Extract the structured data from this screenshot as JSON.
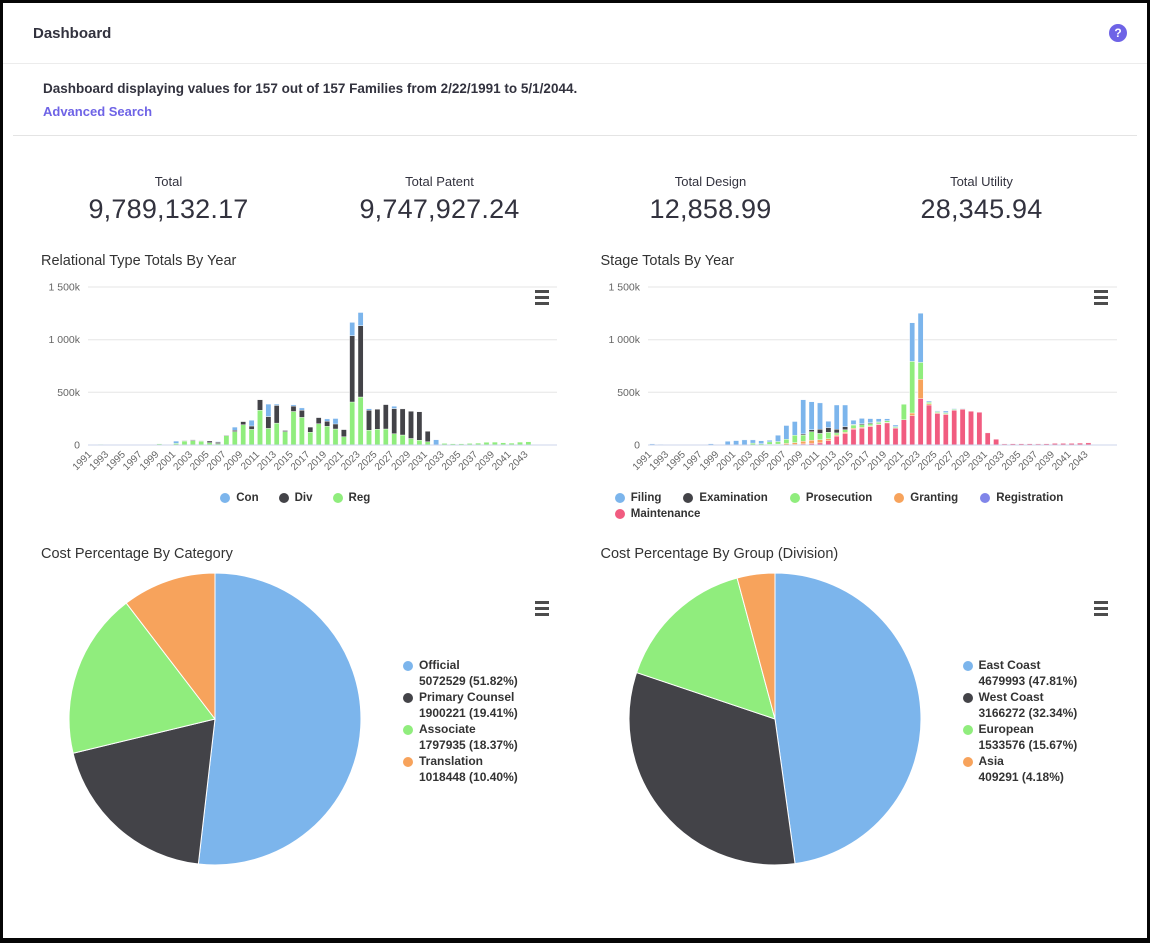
{
  "header": {
    "title": "Dashboard",
    "help_icon": "?"
  },
  "summary": {
    "text": "Dashboard displaying values for 157 out of 157 Families from 2/22/1991 to 5/1/2044.",
    "link_label": "Advanced Search"
  },
  "stats": [
    {
      "label": "Total",
      "value": "9,789,132.17"
    },
    {
      "label": "Total Patent",
      "value": "9,747,927.24"
    },
    {
      "label": "Total Design",
      "value": "12,858.99"
    },
    {
      "label": "Total Utility",
      "value": "28,345.94"
    }
  ],
  "colors": {
    "accent_purple": "#6e63e6",
    "series_blue": "#7cb5ec",
    "series_dark": "#434348",
    "series_green": "#90ed7d",
    "series_orange": "#f7a35c",
    "series_purple": "#8085e9",
    "series_pink": "#f15c80",
    "grid": "#e6e6e6",
    "axis_line": "#ccd6eb",
    "axis_text": "#666666"
  },
  "chart_data": [
    {
      "type": "bar",
      "title": "Relational Type Totals By Year",
      "stacked": true,
      "unit": "values in thousands (k)",
      "ylim_k": [
        0,
        1500
      ],
      "yticks": [
        {
          "label": "1 500k",
          "v": 1500
        },
        {
          "label": "1 000k",
          "v": 1000
        },
        {
          "label": "500k",
          "v": 500
        },
        {
          "label": "0",
          "v": 0
        }
      ],
      "x_tick_labels_every": 2,
      "legend_position": "bottom-center",
      "grid": true,
      "categories": [
        1991,
        1992,
        1993,
        1994,
        1995,
        1996,
        1997,
        1998,
        1999,
        2000,
        2001,
        2002,
        2003,
        2004,
        2005,
        2006,
        2007,
        2008,
        2009,
        2010,
        2011,
        2012,
        2013,
        2014,
        2015,
        2016,
        2017,
        2018,
        2019,
        2020,
        2021,
        2022,
        2023,
        2024,
        2025,
        2026,
        2027,
        2028,
        2029,
        2030,
        2031,
        2032,
        2033,
        2034,
        2035,
        2036,
        2037,
        2038,
        2039,
        2040,
        2041,
        2042,
        2043,
        2044
      ],
      "stack_bottom_to_top": [
        "Reg",
        "Div",
        "Con"
      ],
      "series": [
        {
          "name": "Con",
          "color": "#7cb5ec",
          "values_k": [
            0,
            0,
            0,
            0,
            0,
            0,
            0,
            0,
            0,
            0,
            22,
            0,
            0,
            0,
            0,
            6,
            0,
            30,
            0,
            55,
            0,
            118,
            12,
            0,
            12,
            22,
            0,
            0,
            22,
            52,
            0,
            126,
            126,
            15,
            0,
            0,
            22,
            0,
            0,
            0,
            0,
            50,
            0,
            0,
            0,
            0,
            0,
            0,
            0,
            0,
            0,
            0,
            0,
            0
          ]
        },
        {
          "name": "Div",
          "color": "#434348",
          "values_k": [
            0,
            0,
            0,
            0,
            0,
            0,
            0,
            0,
            0,
            0,
            0,
            5,
            8,
            5,
            16,
            12,
            6,
            12,
            30,
            32,
            100,
            112,
            168,
            10,
            52,
            68,
            48,
            58,
            48,
            48,
            68,
            629,
            676,
            190,
            190,
            232,
            238,
            248,
            258,
            270,
            100,
            0,
            0,
            0,
            0,
            0,
            0,
            0,
            0,
            0,
            0,
            0,
            0,
            0
          ]
        },
        {
          "name": "Reg",
          "color": "#90ed7d",
          "values_k": [
            5,
            8,
            4,
            2,
            2,
            1,
            1,
            2,
            10,
            3,
            15,
            38,
            42,
            36,
            22,
            14,
            88,
            128,
            192,
            148,
            330,
            158,
            208,
            128,
            318,
            262,
            122,
            202,
            178,
            152,
            78,
            409,
            456,
            140,
            150,
            152,
            108,
            95,
            62,
            45,
            30,
            0,
            15,
            12,
            12,
            15,
            18,
            26,
            28,
            22,
            18,
            28,
            30,
            4
          ]
        }
      ]
    },
    {
      "type": "bar",
      "title": "Stage Totals By Year",
      "stacked": true,
      "unit": "values in thousands (k)",
      "ylim_k": [
        0,
        1500
      ],
      "yticks": [
        {
          "label": "1 500k",
          "v": 1500
        },
        {
          "label": "1 000k",
          "v": 1000
        },
        {
          "label": "500k",
          "v": 500
        },
        {
          "label": "0",
          "v": 0
        }
      ],
      "x_tick_labels_every": 2,
      "legend_position": "bottom-left-wrap",
      "grid": true,
      "categories": [
        1991,
        1992,
        1993,
        1994,
        1995,
        1996,
        1997,
        1998,
        1999,
        2000,
        2001,
        2002,
        2003,
        2004,
        2005,
        2006,
        2007,
        2008,
        2009,
        2010,
        2011,
        2012,
        2013,
        2014,
        2015,
        2016,
        2017,
        2018,
        2019,
        2020,
        2021,
        2022,
        2023,
        2024,
        2025,
        2026,
        2027,
        2028,
        2029,
        2030,
        2031,
        2032,
        2033,
        2034,
        2035,
        2036,
        2037,
        2038,
        2039,
        2040,
        2041,
        2042,
        2043,
        2044
      ],
      "stack_bottom_to_top": [
        "Maintenance",
        "Granting",
        "Prosecution",
        "Examination",
        "Filing",
        "Registration"
      ],
      "series": [
        {
          "name": "Filing",
          "color": "#7cb5ec",
          "values_k": [
            10,
            8,
            3,
            2,
            2,
            1,
            1,
            12,
            3,
            35,
            42,
            48,
            30,
            28,
            15,
            60,
            130,
            130,
            325,
            265,
            250,
            60,
            230,
            205,
            40,
            50,
            40,
            30,
            20,
            15,
            0,
            366,
            467,
            10,
            8,
            15,
            8,
            5,
            0,
            0,
            0,
            0,
            0,
            0,
            0,
            0,
            0,
            0,
            0,
            0,
            0,
            0,
            0,
            0
          ]
        },
        {
          "name": "Examination",
          "color": "#434348",
          "values_k": [
            0,
            0,
            0,
            0,
            0,
            0,
            0,
            0,
            0,
            0,
            0,
            0,
            0,
            0,
            0,
            0,
            0,
            0,
            10,
            20,
            40,
            45,
            35,
            30,
            5,
            10,
            8,
            5,
            0,
            0,
            0,
            0,
            0,
            0,
            0,
            0,
            0,
            0,
            0,
            0,
            0,
            0,
            0,
            0,
            0,
            0,
            0,
            0,
            0,
            0,
            0,
            0,
            0,
            0
          ]
        },
        {
          "name": "Prosecution",
          "color": "#90ed7d",
          "values_k": [
            0,
            0,
            0,
            0,
            0,
            0,
            0,
            0,
            0,
            0,
            0,
            0,
            18,
            12,
            25,
            25,
            40,
            70,
            60,
            80,
            60,
            60,
            20,
            25,
            30,
            25,
            20,
            15,
            15,
            10,
            147,
            490,
            160,
            15,
            10,
            10,
            8,
            5,
            0,
            0,
            0,
            0,
            0,
            0,
            0,
            0,
            0,
            0,
            0,
            0,
            0,
            0,
            0,
            0
          ]
        },
        {
          "name": "Granting",
          "color": "#f7a35c",
          "values_k": [
            0,
            0,
            0,
            0,
            0,
            0,
            0,
            0,
            0,
            0,
            0,
            0,
            0,
            0,
            5,
            8,
            15,
            18,
            25,
            30,
            30,
            20,
            10,
            10,
            10,
            8,
            8,
            5,
            5,
            5,
            0,
            26,
            183,
            12,
            8,
            8,
            0,
            0,
            0,
            0,
            0,
            0,
            0,
            0,
            0,
            0,
            0,
            0,
            0,
            0,
            0,
            0,
            0,
            0
          ]
        },
        {
          "name": "Registration",
          "color": "#8085e9",
          "values_k": [
            0,
            0,
            0,
            0,
            0,
            0,
            0,
            0,
            0,
            0,
            0,
            0,
            0,
            0,
            0,
            0,
            0,
            0,
            0,
            0,
            0,
            0,
            0,
            0,
            0,
            0,
            0,
            0,
            0,
            0,
            0,
            0,
            0,
            0,
            0,
            0,
            0,
            0,
            0,
            0,
            0,
            0,
            0,
            0,
            0,
            0,
            0,
            0,
            0,
            0,
            0,
            0,
            0,
            0
          ]
        },
        {
          "name": "Maintenance",
          "color": "#f15c80",
          "values_k": [
            0,
            0,
            0,
            0,
            0,
            0,
            0,
            0,
            0,
            0,
            0,
            0,
            0,
            0,
            0,
            0,
            0,
            5,
            10,
            15,
            20,
            40,
            85,
            110,
            150,
            160,
            175,
            195,
            210,
            160,
            239,
            278,
            441,
            380,
            300,
            290,
            330,
            340,
            320,
            310,
            115,
            55,
            10,
            12,
            12,
            12,
            10,
            12,
            15,
            15,
            15,
            18,
            20,
            3
          ]
        }
      ]
    },
    {
      "type": "pie",
      "title": "Cost Percentage By Category",
      "legend_position": "right",
      "slices": [
        {
          "name": "Official",
          "value": 5072529,
          "pct": 51.82,
          "color": "#7cb5ec"
        },
        {
          "name": "Primary Counsel",
          "value": 1900221,
          "pct": 19.41,
          "color": "#434348"
        },
        {
          "name": "Associate",
          "value": 1797935,
          "pct": 18.37,
          "color": "#90ed7d"
        },
        {
          "name": "Translation",
          "value": 1018448,
          "pct": 10.4,
          "color": "#f7a35c"
        }
      ]
    },
    {
      "type": "pie",
      "title": "Cost Percentage By Group (Division)",
      "legend_position": "right",
      "slices": [
        {
          "name": "East Coast",
          "value": 4679993,
          "pct": 47.81,
          "color": "#7cb5ec"
        },
        {
          "name": "West Coast",
          "value": 3166272,
          "pct": 32.34,
          "color": "#434348"
        },
        {
          "name": "European",
          "value": 1533576,
          "pct": 15.67,
          "color": "#90ed7d"
        },
        {
          "name": "Asia",
          "value": 409291,
          "pct": 4.18,
          "color": "#f7a35c"
        }
      ]
    }
  ]
}
